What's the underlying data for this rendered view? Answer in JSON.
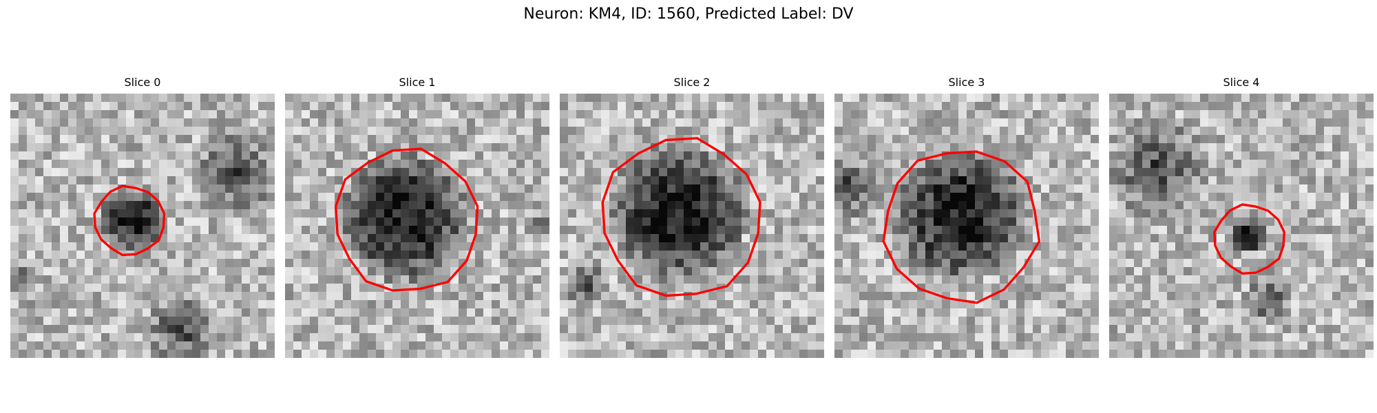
{
  "figure": {
    "title": "Neuron: KM4, ID: 1560, Predicted Label: DV"
  },
  "panels": [
    {
      "title": "Slice 0",
      "seed": 11,
      "blob_center": [
        0.46,
        0.48
      ],
      "blob_radius": 0.13,
      "contour_center": [
        0.45,
        0.48
      ],
      "contour_radius": 0.13,
      "extra_dark": [
        [
          0.85,
          0.3,
          0.18
        ],
        [
          0.65,
          0.9,
          0.16
        ],
        [
          0.02,
          0.7,
          0.08
        ]
      ]
    },
    {
      "title": "Slice 1",
      "seed": 23,
      "blob_center": [
        0.45,
        0.47
      ],
      "blob_radius": 0.25,
      "contour_center": [
        0.46,
        0.48
      ],
      "contour_radius": 0.27,
      "extra_dark": [
        [
          0.95,
          0.5,
          0.06
        ]
      ]
    },
    {
      "title": "Slice 2",
      "seed": 37,
      "blob_center": [
        0.45,
        0.45
      ],
      "blob_radius": 0.27,
      "contour_center": [
        0.46,
        0.47
      ],
      "contour_radius": 0.3,
      "extra_dark": [
        [
          0.1,
          0.72,
          0.1
        ]
      ]
    },
    {
      "title": "Slice 3",
      "seed": 41,
      "blob_center": [
        0.48,
        0.46
      ],
      "blob_radius": 0.26,
      "contour_center": [
        0.48,
        0.5
      ],
      "contour_radius": 0.29,
      "extra_dark": [
        [
          0.05,
          0.35,
          0.14
        ]
      ]
    },
    {
      "title": "Slice 4",
      "seed": 53,
      "blob_center": [
        0.53,
        0.54
      ],
      "blob_radius": 0.07,
      "contour_center": [
        0.53,
        0.55
      ],
      "contour_radius": 0.13,
      "extra_dark": [
        [
          0.18,
          0.28,
          0.22
        ],
        [
          0.6,
          0.78,
          0.1
        ]
      ]
    }
  ],
  "colors": {
    "contour": "#ff0000"
  }
}
